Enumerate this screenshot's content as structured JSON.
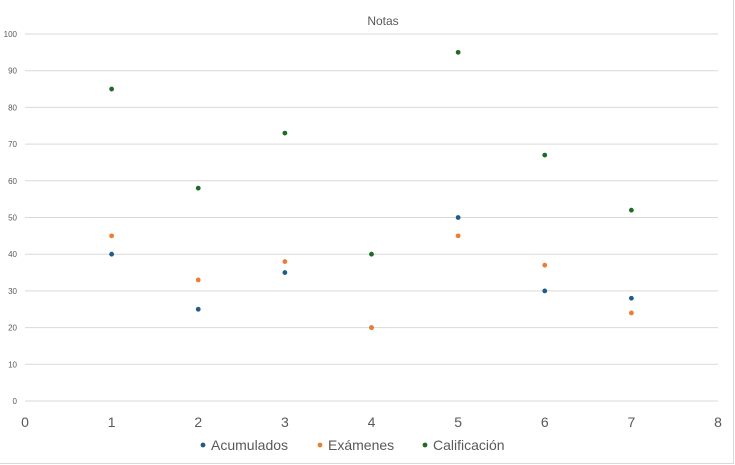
{
  "chart_data": {
    "type": "scatter",
    "title": "Notas",
    "xlabel": "",
    "ylabel": "",
    "xlim": [
      0,
      8
    ],
    "ylim": [
      0,
      100
    ],
    "xticks": [
      0,
      1,
      2,
      3,
      4,
      5,
      6,
      7,
      8
    ],
    "yticks": [
      0,
      10,
      20,
      30,
      40,
      50,
      60,
      70,
      80,
      90,
      100
    ],
    "grid": "horizontal",
    "legend_position": "bottom",
    "series": [
      {
        "name": "Acumulados",
        "color": "#1f5c8c",
        "x": [
          1,
          2,
          3,
          4,
          5,
          6,
          7
        ],
        "y": [
          40,
          25,
          35,
          20,
          50,
          30,
          28
        ]
      },
      {
        "name": "Exámenes",
        "color": "#ed7d31",
        "x": [
          1,
          2,
          3,
          4,
          5,
          6,
          7
        ],
        "y": [
          45,
          33,
          38,
          20,
          45,
          37,
          24
        ]
      },
      {
        "name": "Calificación",
        "color": "#1e6b25",
        "x": [
          1,
          2,
          3,
          4,
          5,
          6,
          7
        ],
        "y": [
          85,
          58,
          73,
          40,
          95,
          67,
          52
        ]
      }
    ]
  }
}
